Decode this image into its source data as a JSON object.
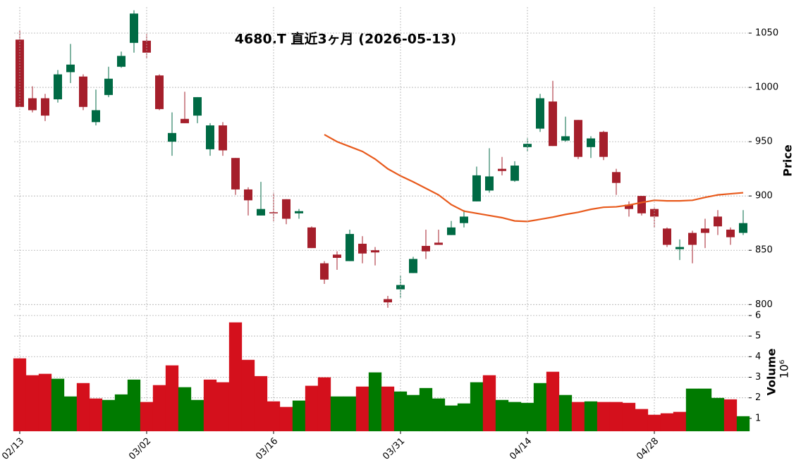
{
  "chart_data": [
    {
      "type": "candlestick",
      "title": "4680.T  直近3ヶ月  (2026-05-13)",
      "ylabel": "Price",
      "open": [
        1044,
        990,
        990,
        989,
        1014,
        1010,
        968,
        993,
        1019,
        1041,
        1043,
        1011,
        950,
        971,
        974,
        943,
        965,
        935,
        906,
        882,
        885,
        897,
        884,
        871,
        838,
        846,
        840,
        856,
        850,
        805,
        814,
        829,
        854,
        857,
        864,
        875,
        895,
        905,
        925,
        914,
        945,
        962,
        987,
        951,
        970,
        945,
        959,
        922,
        892,
        900,
        888,
        870,
        851,
        866,
        870,
        881,
        869,
        866
      ],
      "high": [
        1053,
        1001,
        994,
        1016,
        1040,
        1012,
        998,
        1019,
        1033,
        1071,
        1049,
        1012,
        977,
        996,
        991,
        967,
        968,
        935,
        908,
        913,
        903,
        897,
        888,
        872,
        840,
        849,
        869,
        863,
        853,
        808,
        827,
        844,
        869,
        869,
        877,
        887,
        927,
        944,
        936,
        932,
        953,
        994,
        1006,
        973,
        970,
        955,
        960,
        925,
        895,
        900,
        890,
        871,
        860,
        868,
        879,
        887,
        871,
        887
      ],
      "low": [
        982,
        977,
        969,
        986,
        1004,
        979,
        965,
        991,
        1018,
        1032,
        1027,
        979,
        937,
        967,
        967,
        937,
        937,
        901,
        882,
        882,
        877,
        874,
        879,
        852,
        819,
        832,
        840,
        838,
        836,
        797,
        806,
        829,
        842,
        855,
        864,
        871,
        895,
        903,
        919,
        913,
        941,
        959,
        946,
        950,
        934,
        935,
        933,
        901,
        881,
        882,
        871,
        853,
        841,
        838,
        852,
        864,
        855,
        864
      ],
      "close": [
        982,
        979,
        974,
        1012,
        1021,
        982,
        979,
        1008,
        1029,
        1068,
        1032,
        980,
        958,
        967,
        991,
        965,
        942,
        906,
        896,
        888,
        884,
        879,
        886,
        852,
        823,
        843,
        865,
        847,
        848,
        802,
        818,
        842,
        849,
        855,
        871,
        881,
        919,
        918,
        923,
        928,
        948,
        990,
        946,
        955,
        936,
        953,
        936,
        912,
        888,
        884,
        881,
        855,
        853,
        855,
        866,
        872,
        862,
        875
      ],
      "up_color": "#006a44",
      "down_color": "#a51f2b",
      "line": {
        "color": "#e85a1c",
        "values": [
          null,
          null,
          null,
          null,
          null,
          null,
          null,
          null,
          null,
          null,
          null,
          null,
          null,
          null,
          null,
          null,
          null,
          null,
          null,
          null,
          null,
          null,
          null,
          null,
          956.5,
          950,
          945.5,
          941,
          934,
          925,
          918.5,
          913,
          907,
          901,
          892,
          886,
          884,
          882,
          880,
          877,
          876.5,
          878.5,
          880.5,
          883,
          885,
          887.7,
          889.6,
          890,
          891.6,
          894,
          896,
          895.5,
          895.5,
          896,
          898.7,
          901,
          902,
          903
        ]
      },
      "ylim": [
        795,
        1074
      ],
      "yticks": [
        800,
        850,
        900,
        950,
        1000,
        1050
      ],
      "grid": true
    },
    {
      "type": "bar",
      "ylabel": "Volume",
      "multiplier": "10⁶",
      "categories": [
        "02/13",
        null,
        null,
        null,
        null,
        null,
        null,
        null,
        null,
        null,
        "03/02",
        null,
        null,
        null,
        null,
        null,
        null,
        null,
        null,
        null,
        "03/16",
        null,
        null,
        null,
        null,
        null,
        null,
        null,
        null,
        null,
        "03/31",
        null,
        null,
        null,
        null,
        null,
        null,
        null,
        null,
        null,
        "04/14",
        null,
        null,
        null,
        null,
        null,
        null,
        null,
        null,
        null,
        "04/28",
        null,
        null,
        null,
        null,
        null,
        null,
        null
      ],
      "values": [
        3.91,
        3.09,
        3.16,
        2.92,
        2.06,
        2.71,
        1.96,
        1.89,
        2.16,
        2.88,
        1.79,
        2.61,
        3.57,
        2.51,
        1.89,
        2.88,
        2.75,
        5.66,
        3.84,
        3.05,
        1.82,
        1.55,
        1.86,
        2.58,
        2.99,
        2.06,
        2.06,
        2.54,
        3.23,
        2.54,
        2.3,
        2.13,
        2.47,
        1.96,
        1.62,
        1.72,
        2.75,
        3.09,
        1.89,
        1.79,
        1.75,
        2.71,
        3.26,
        2.13,
        1.79,
        1.82,
        1.79,
        1.79,
        1.75,
        1.45,
        1.17,
        1.24,
        1.31,
        2.44,
        2.44,
        1.99,
        1.92,
        1.1
      ],
      "up_color": "#007a00",
      "down_color": "#d4101c",
      "ylim": [
        0.38,
        6.03
      ],
      "yticks": [
        1,
        2,
        3,
        4,
        5,
        6
      ],
      "grid": true
    }
  ]
}
